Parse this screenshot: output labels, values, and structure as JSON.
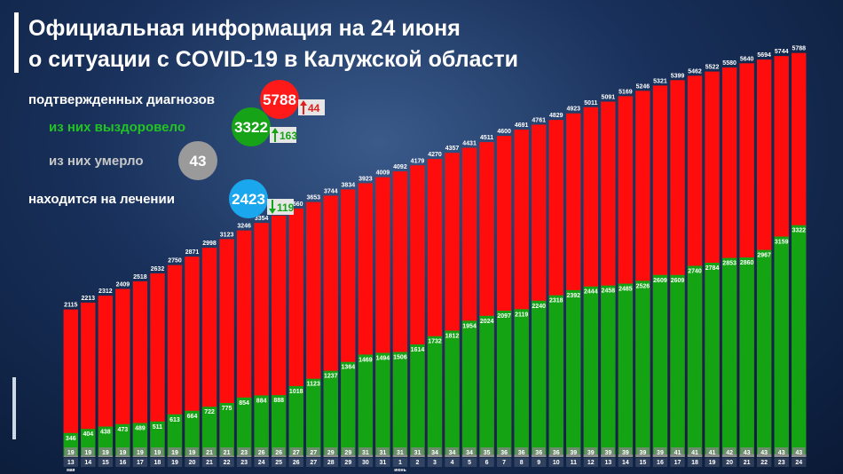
{
  "chart_data": {
    "type": "bar",
    "title": "Официальная информация на 24 июня",
    "subtitle": "о ситуации с COVID-19 в Калужской области",
    "stats": [
      {
        "label": "подтвержденных диагнозов",
        "value": 5788,
        "change": 44,
        "color": "#ff1a1a",
        "label_color": "#ffffff",
        "arrow": "up",
        "arrow_color": "#e0201b"
      },
      {
        "label": "из них выздоровело",
        "value": 3322,
        "change": 163,
        "color": "#17a317",
        "label_color": "#22c322",
        "arrow": "up",
        "arrow_color": "#17a317"
      },
      {
        "label": "из них умерло",
        "value": 43,
        "color": "#9a9a9a",
        "label_color": "#c8c8c8"
      },
      {
        "label": "находится на лечении",
        "value": 2423,
        "change": 119,
        "color": "#1aa7ee",
        "label_color": "#ffffff",
        "arrow": "down",
        "arrow_color": "#17a317"
      }
    ],
    "categories": [
      "13",
      "14",
      "15",
      "16",
      "17",
      "18",
      "19",
      "20",
      "21",
      "22",
      "23",
      "24",
      "25",
      "26",
      "27",
      "28",
      "29",
      "30",
      "31",
      "1",
      "2",
      "3",
      "4",
      "5",
      "6",
      "7",
      "8",
      "9",
      "10",
      "11",
      "12",
      "13",
      "14",
      "15",
      "16",
      "17",
      "18",
      "19",
      "20",
      "21",
      "22",
      "23",
      "24"
    ],
    "category_months": [
      "мая",
      null,
      null,
      null,
      null,
      null,
      null,
      null,
      null,
      null,
      null,
      null,
      null,
      null,
      null,
      null,
      null,
      null,
      null,
      "июнь",
      null,
      null,
      null,
      null,
      null,
      null,
      null,
      null,
      null,
      null,
      null,
      null,
      null,
      null,
      null,
      null,
      null,
      null,
      null,
      null,
      null,
      null,
      null
    ],
    "series": [
      {
        "name": "подтвержденных диагнозов",
        "color": "#ff0d0d",
        "values": [
          2115,
          2213,
          2312,
          2409,
          2518,
          2632,
          2750,
          2871,
          2998,
          3123,
          3246,
          3354,
          3459,
          3560,
          3653,
          3744,
          3834,
          3923,
          4009,
          4092,
          4179,
          4270,
          4357,
          4431,
          4511,
          4600,
          4691,
          4761,
          4829,
          4923,
          5011,
          5091,
          5169,
          5246,
          5321,
          5399,
          5462,
          5522,
          5580,
          5640,
          5694,
          5744,
          5788
        ]
      },
      {
        "name": "из них выздоровело",
        "color": "#13a313",
        "values": [
          346,
          404,
          438,
          473,
          489,
          511,
          613,
          664,
          722,
          775,
          854,
          884,
          888,
          1018,
          1123,
          1237,
          1364,
          1469,
          1494,
          1506,
          1614,
          1732,
          1812,
          1954,
          2024,
          2097,
          2119,
          2240,
          2318,
          2392,
          2444,
          2458,
          2485,
          2526,
          2609,
          2609,
          2740,
          2784,
          2853,
          2860,
          2967,
          3159,
          3322
        ]
      },
      {
        "name": "из них умерло",
        "color": "#8c8c8c",
        "values": [
          19,
          19,
          19,
          19,
          19,
          19,
          19,
          19,
          21,
          21,
          23,
          26,
          26,
          27,
          27,
          29,
          29,
          31,
          31,
          31,
          31,
          34,
          34,
          34,
          35,
          36,
          36,
          36,
          36,
          39,
          39,
          39,
          39,
          39,
          39,
          41,
          41,
          41,
          42,
          43,
          43,
          43,
          43
        ]
      }
    ],
    "ylim": [
      0,
      6000
    ]
  }
}
